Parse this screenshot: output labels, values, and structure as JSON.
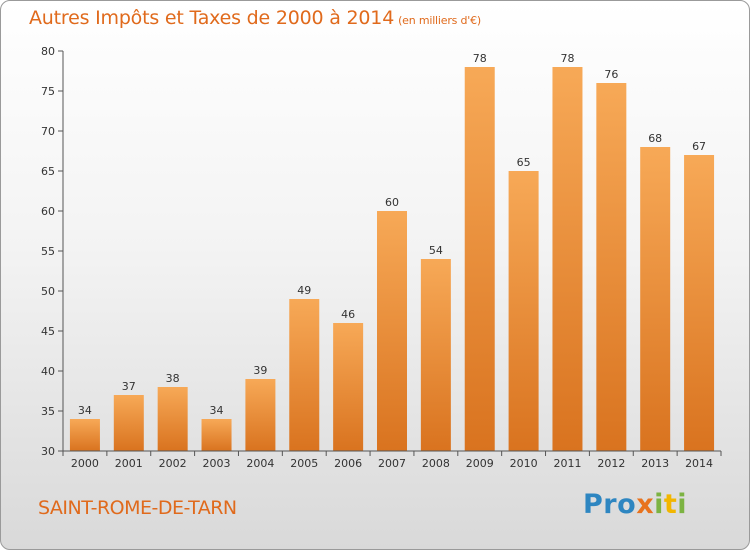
{
  "header": {
    "title": "Autres Impôts et Taxes de 2000 à 2014",
    "subtitle": "(en milliers d'€)"
  },
  "footer": {
    "commune": "SAINT-ROME-DE-TARN",
    "logo_text": "Proxiti",
    "logo_letters": [
      {
        "char": "P",
        "color": "#2e86c1"
      },
      {
        "char": "r",
        "color": "#2e86c1"
      },
      {
        "char": "o",
        "color": "#2e86c1"
      },
      {
        "char": "x",
        "color": "#e8731e"
      },
      {
        "char": "i",
        "color": "#7cb342"
      },
      {
        "char": "t",
        "color": "#f2b600"
      },
      {
        "char": "i",
        "color": "#7cb342"
      }
    ]
  },
  "colors": {
    "bar_light": "#f7a957",
    "bar_dark": "#d9731f",
    "accent": "#e06a1c",
    "axis": "#555555"
  },
  "chart_data": {
    "type": "bar",
    "title": "Autres Impôts et Taxes de 2000 à 2014",
    "subtitle": "(en milliers d'€)",
    "categories": [
      "2000",
      "2001",
      "2002",
      "2003",
      "2004",
      "2005",
      "2006",
      "2007",
      "2008",
      "2009",
      "2010",
      "2011",
      "2012",
      "2013",
      "2014"
    ],
    "values": [
      34,
      37,
      38,
      34,
      39,
      49,
      46,
      60,
      54,
      78,
      65,
      78,
      76,
      68,
      67
    ],
    "ylim": [
      30,
      80
    ],
    "yticks": [
      30,
      35,
      40,
      45,
      50,
      55,
      60,
      65,
      70,
      75,
      80
    ],
    "grid": false,
    "legend": "none"
  }
}
